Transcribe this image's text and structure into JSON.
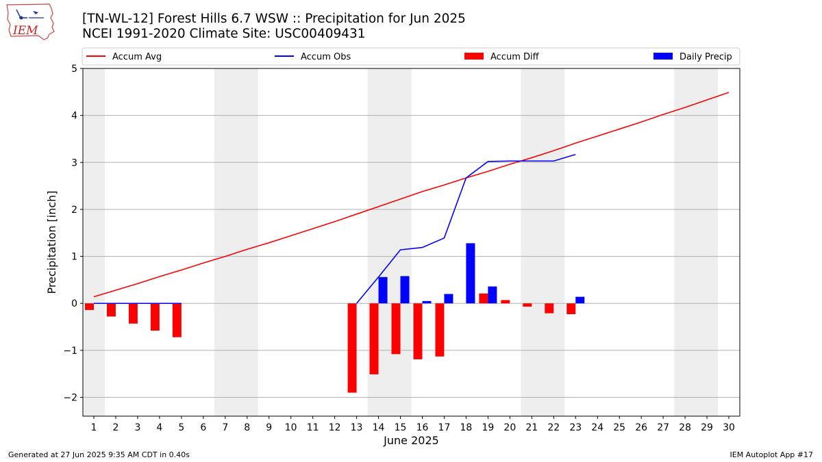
{
  "header": {
    "title_line1": "[TN-WL-12] Forest Hills 6.7 WSW :: Precipitation for Jun 2025",
    "title_line2": "NCEI 1991-2020 Climate Site: USC00409431"
  },
  "logo": {
    "text": "IEM",
    "color": "#cc2222"
  },
  "footer": {
    "left": "Generated at 27 Jun 2025 9:35 AM CDT in 0.40s",
    "right": "IEM Autoplot App #17"
  },
  "colors": {
    "avg": "#ff0000",
    "obs": "#0000ff",
    "diff": "#ff0000",
    "daily": "#0000ff",
    "weekend": "#eeeeee",
    "grid": "#b0b0b0"
  },
  "chart_data": {
    "type": "bar",
    "xlabel": "June 2025",
    "ylabel": "Precipitation [inch]",
    "xlim": [
      0.5,
      30.5
    ],
    "ylim": [
      -2.4,
      5.0
    ],
    "yticks": [
      -2,
      -1,
      0,
      1,
      2,
      3,
      4,
      5
    ],
    "xticks": [
      1,
      2,
      3,
      4,
      5,
      6,
      7,
      8,
      9,
      10,
      11,
      12,
      13,
      14,
      15,
      16,
      17,
      18,
      19,
      20,
      21,
      22,
      23,
      24,
      25,
      26,
      27,
      28,
      29,
      30
    ],
    "weekend_bands": [
      [
        0.5,
        1.5
      ],
      [
        6.5,
        8.5
      ],
      [
        13.5,
        15.5
      ],
      [
        20.5,
        22.5
      ],
      [
        27.5,
        29.5
      ]
    ],
    "grid": "horizontal",
    "legend": {
      "placement": "top",
      "entries": [
        "Accum Avg",
        "Accum Obs",
        "Accum Diff",
        "Daily Precip"
      ]
    },
    "series": [
      {
        "name": "Accum Avg",
        "type": "line",
        "x": [
          1,
          2,
          3,
          4,
          5,
          6,
          7,
          8,
          9,
          10,
          11,
          12,
          13,
          14,
          15,
          16,
          17,
          18,
          19,
          20,
          21,
          22,
          23,
          24,
          25,
          26,
          27,
          28,
          29,
          30
        ],
        "values": [
          0.14,
          0.28,
          0.42,
          0.57,
          0.71,
          0.86,
          1.0,
          1.15,
          1.29,
          1.44,
          1.59,
          1.74,
          1.9,
          2.06,
          2.22,
          2.38,
          2.52,
          2.67,
          2.81,
          2.96,
          3.1,
          3.25,
          3.41,
          3.56,
          3.71,
          3.86,
          4.02,
          4.17,
          4.33,
          4.49
        ]
      },
      {
        "name": "Accum Obs",
        "type": "line",
        "x": [
          1,
          2,
          3,
          4,
          5,
          13,
          14,
          15,
          16,
          17,
          18,
          19,
          20,
          21,
          22,
          23
        ],
        "values": [
          0.0,
          0.0,
          0.0,
          0.0,
          0.0,
          0.0,
          0.56,
          1.14,
          1.19,
          1.39,
          2.67,
          3.02,
          3.03,
          3.03,
          3.03,
          3.17
        ]
      },
      {
        "name": "Accum Diff",
        "type": "bar",
        "x": [
          1,
          2,
          3,
          4,
          5,
          13,
          14,
          15,
          16,
          17,
          19,
          20,
          21,
          22,
          23
        ],
        "values": [
          -0.14,
          -0.28,
          -0.43,
          -0.58,
          -0.72,
          -1.9,
          -1.51,
          -1.08,
          -1.19,
          -1.13,
          0.21,
          0.07,
          -0.07,
          -0.21,
          -0.23
        ]
      },
      {
        "name": "Daily Precip",
        "type": "bar",
        "x": [
          14,
          15,
          16,
          17,
          18,
          19,
          23
        ],
        "values": [
          0.56,
          0.58,
          0.05,
          0.2,
          1.28,
          0.36,
          0.14
        ]
      }
    ]
  }
}
